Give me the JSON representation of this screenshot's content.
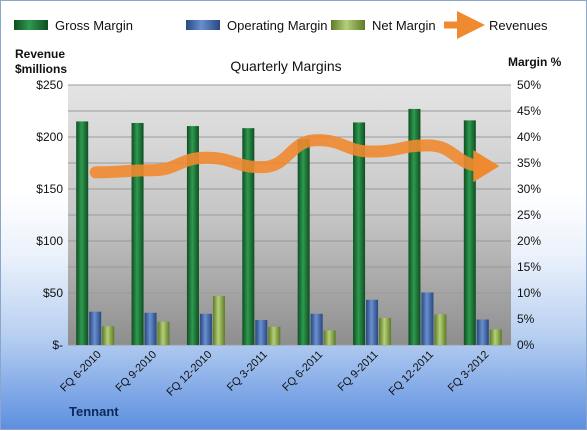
{
  "chart_data": {
    "type": "bar",
    "title": "Quarterly Margins",
    "company": "Tennant",
    "categories": [
      "FQ 6-2010",
      "FQ 9-2010",
      "FQ 12-2010",
      "FQ 3-2011",
      "FQ 6-2011",
      "FQ 9-2011",
      "FQ 12-2011",
      "FQ 3-2012"
    ],
    "left_axis": {
      "label_line1": "Revenue",
      "label_line2": "$millions",
      "ylim": [
        0,
        250
      ],
      "ticks": [
        "$-",
        "$50",
        "$100",
        "$150",
        "$200",
        "$250"
      ]
    },
    "right_axis": {
      "label": "Margin %",
      "ylim": [
        0,
        50
      ],
      "ticks": [
        "0%",
        "5%",
        "10%",
        "15%",
        "20%",
        "25%",
        "30%",
        "35%",
        "40%",
        "45%",
        "50%"
      ]
    },
    "series": [
      {
        "name": "Gross Margin",
        "axis": "right",
        "color": "#1f7a3a",
        "values": [
          43.0,
          42.7,
          42.1,
          41.7,
          39.6,
          42.8,
          45.4,
          43.2
        ]
      },
      {
        "name": "Operating Margin",
        "axis": "right",
        "color": "#4a6fb5",
        "values": [
          6.4,
          6.2,
          6.0,
          4.8,
          6.0,
          8.7,
          10.1,
          4.9
        ]
      },
      {
        "name": "Net Margin",
        "axis": "right",
        "color": "#9bbb59",
        "values": [
          3.6,
          4.5,
          9.4,
          3.5,
          2.8,
          5.2,
          5.9,
          3.0
        ]
      },
      {
        "name": "Revenues",
        "axis": "left",
        "type": "line",
        "color": "#f08a30",
        "values": [
          166,
          168,
          180,
          171,
          197,
          186,
          192,
          172
        ]
      }
    ],
    "grid": true,
    "legend_position": "top"
  }
}
